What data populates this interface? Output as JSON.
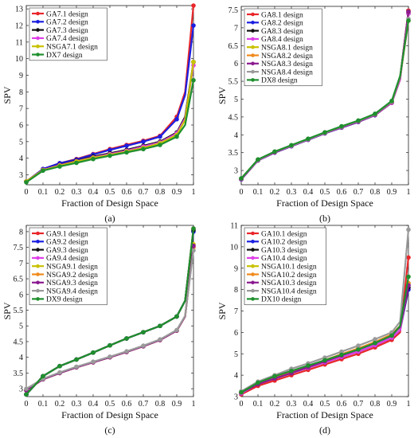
{
  "chart_data": [
    {
      "type": "line",
      "caption": "(a)",
      "xlabel": "Fraction of Design Space",
      "ylabel": "SPV",
      "xlim": [
        0,
        1
      ],
      "ylim": [
        2.4,
        13.2
      ],
      "xticks": [
        "0",
        "0.1",
        "0.2",
        "0.3",
        "0.4",
        "0.5",
        "0.6",
        "0.7",
        "0.8",
        "0.9",
        "1"
      ],
      "yticks": [
        3,
        4,
        5,
        6,
        7,
        8,
        9,
        10,
        11,
        12,
        13
      ],
      "x": [
        0,
        0.1,
        0.2,
        0.3,
        0.4,
        0.5,
        0.6,
        0.7,
        0.8,
        0.9,
        0.95,
        1
      ],
      "legend_position": "top-left",
      "series": [
        {
          "name": "GA7.1 design",
          "color": "#e8262a",
          "values": [
            2.6,
            3.35,
            3.7,
            3.95,
            4.25,
            4.55,
            4.8,
            5.05,
            5.35,
            6.5,
            8.0,
            13.2
          ]
        },
        {
          "name": "GA7.2 design",
          "color": "#1b1fe0",
          "values": [
            2.6,
            3.35,
            3.7,
            3.92,
            4.22,
            4.5,
            4.75,
            5.0,
            5.3,
            6.35,
            7.8,
            12.0
          ]
        },
        {
          "name": "GA7.3 design",
          "color": "#111111",
          "values": [
            2.6,
            3.3,
            3.6,
            3.85,
            4.1,
            4.3,
            4.5,
            4.75,
            5.0,
            5.55,
            6.5,
            9.8
          ]
        },
        {
          "name": "GA7.4 design",
          "color": "#e040e8",
          "values": [
            2.6,
            3.3,
            3.58,
            3.82,
            4.05,
            4.25,
            4.45,
            4.7,
            4.95,
            5.5,
            6.4,
            9.6
          ]
        },
        {
          "name": "NSGA7.1 design",
          "color": "#c9c200",
          "values": [
            2.6,
            3.28,
            3.55,
            3.8,
            4.02,
            4.2,
            4.4,
            4.62,
            4.9,
            5.4,
            6.3,
            9.8
          ]
        },
        {
          "name": "DX7 design",
          "color": "#1f8f2e",
          "values": [
            2.55,
            3.25,
            3.5,
            3.72,
            3.95,
            4.15,
            4.35,
            4.55,
            4.8,
            5.3,
            6.0,
            8.7
          ]
        }
      ]
    },
    {
      "type": "line",
      "caption": "(b)",
      "xlabel": "Fraction of Design Space",
      "ylabel": "SPV",
      "xlim": [
        0,
        1
      ],
      "ylim": [
        2.6,
        7.6
      ],
      "xticks": [
        "0",
        "0.1",
        "0.2",
        "0.3",
        "0.4",
        "0.5",
        "0.6",
        "0.7",
        "0.8",
        "0.9",
        "1"
      ],
      "yticks": [
        "3",
        "3.5",
        "4",
        "4.5",
        "5",
        "5.5",
        "6",
        "6.5",
        "7",
        "7.5"
      ],
      "x": [
        0,
        0.1,
        0.2,
        0.3,
        0.4,
        0.5,
        0.6,
        0.7,
        0.8,
        0.9,
        0.95,
        1
      ],
      "legend_position": "top-left",
      "series": [
        {
          "name": "GA8.1 design",
          "color": "#e8262a",
          "values": [
            2.75,
            3.28,
            3.5,
            3.68,
            3.86,
            4.04,
            4.2,
            4.36,
            4.55,
            4.9,
            5.6,
            7.48
          ]
        },
        {
          "name": "GA8.2 design",
          "color": "#1b1fe0",
          "values": [
            2.75,
            3.28,
            3.5,
            3.68,
            3.86,
            4.04,
            4.2,
            4.36,
            4.55,
            4.9,
            5.6,
            7.45
          ]
        },
        {
          "name": "GA8.3 design",
          "color": "#111111",
          "values": [
            2.76,
            3.29,
            3.51,
            3.69,
            3.87,
            4.05,
            4.21,
            4.37,
            4.56,
            4.9,
            5.55,
            7.4
          ]
        },
        {
          "name": "GA8.4 design",
          "color": "#e040e8",
          "values": [
            2.76,
            3.29,
            3.51,
            3.69,
            3.87,
            4.05,
            4.21,
            4.37,
            4.56,
            4.9,
            5.55,
            7.4
          ]
        },
        {
          "name": "NSGA8.1 design",
          "color": "#c9c200",
          "values": [
            2.77,
            3.3,
            3.52,
            3.7,
            3.88,
            4.06,
            4.22,
            4.38,
            4.57,
            4.92,
            5.6,
            7.45
          ]
        },
        {
          "name": "NSGA8.2 design",
          "color": "#f08a1c",
          "values": [
            2.77,
            3.3,
            3.52,
            3.7,
            3.88,
            4.06,
            4.22,
            4.38,
            4.57,
            4.92,
            5.6,
            7.2
          ]
        },
        {
          "name": "NSGA8.3 design",
          "color": "#8b1a8f",
          "values": [
            2.77,
            3.3,
            3.52,
            3.7,
            3.88,
            4.06,
            4.22,
            4.38,
            4.57,
            4.92,
            5.6,
            7.45
          ]
        },
        {
          "name": "NSGA8.4 design",
          "color": "#9a9a9a",
          "values": [
            2.78,
            3.3,
            3.53,
            3.7,
            3.88,
            4.06,
            4.23,
            4.39,
            4.58,
            4.93,
            5.62,
            7.25
          ]
        },
        {
          "name": "DX8 design",
          "color": "#1f8f2e",
          "values": [
            2.78,
            3.31,
            3.53,
            3.71,
            3.89,
            4.07,
            4.24,
            4.4,
            4.59,
            4.95,
            5.65,
            7.2
          ]
        }
      ]
    },
    {
      "type": "line",
      "caption": "(c)",
      "xlabel": "Fraction of Design Space",
      "ylabel": "SPV",
      "xlim": [
        0,
        1
      ],
      "ylim": [
        2.75,
        8.2
      ],
      "xticks": [
        "0",
        "0.1",
        "0.2",
        "0.3",
        "0.4",
        "0.5",
        "0.6",
        "0.7",
        "0.8",
        "0.9",
        "1"
      ],
      "yticks": [
        "3",
        "3.5",
        "4",
        "4.5",
        "5",
        "5.5",
        "6",
        "6.5",
        "7",
        "7.5",
        "8"
      ],
      "x": [
        0,
        0.1,
        0.2,
        0.3,
        0.4,
        0.5,
        0.6,
        0.7,
        0.8,
        0.9,
        0.95,
        1
      ],
      "legend_position": "top-left",
      "series": [
        {
          "name": "GA9.1 design",
          "color": "#e8262a",
          "values": [
            2.82,
            3.4,
            3.72,
            3.93,
            4.15,
            4.38,
            4.6,
            4.8,
            5.0,
            5.3,
            5.8,
            8.1
          ]
        },
        {
          "name": "GA9.2 design",
          "color": "#1b1fe0",
          "values": [
            2.82,
            3.4,
            3.72,
            3.93,
            4.15,
            4.38,
            4.6,
            4.8,
            5.0,
            5.3,
            5.8,
            8.0
          ]
        },
        {
          "name": "GA9.3 design",
          "color": "#111111",
          "values": [
            2.82,
            3.4,
            3.72,
            3.93,
            4.15,
            4.38,
            4.6,
            4.8,
            5.0,
            5.3,
            5.8,
            8.05
          ]
        },
        {
          "name": "GA9.4 design",
          "color": "#e040e8",
          "values": [
            2.95,
            3.3,
            3.5,
            3.68,
            3.84,
            4.0,
            4.17,
            4.35,
            4.55,
            4.85,
            5.3,
            7.5
          ]
        },
        {
          "name": "NSGA9.1 design",
          "color": "#c9c200",
          "values": [
            2.95,
            3.3,
            3.5,
            3.68,
            3.84,
            4.0,
            4.17,
            4.35,
            4.55,
            4.85,
            5.3,
            7.6
          ]
        },
        {
          "name": "NSGA9.2 design",
          "color": "#f08a1c",
          "values": [
            2.95,
            3.3,
            3.5,
            3.68,
            3.84,
            4.0,
            4.17,
            4.35,
            4.55,
            4.85,
            5.3,
            7.5
          ]
        },
        {
          "name": "NSGA9.3 design",
          "color": "#8b1a8f",
          "values": [
            2.95,
            3.3,
            3.5,
            3.68,
            3.84,
            4.0,
            4.17,
            4.35,
            4.55,
            4.85,
            5.3,
            7.55
          ]
        },
        {
          "name": "NSGA9.4 design",
          "color": "#9a9a9a",
          "values": [
            3.0,
            3.32,
            3.52,
            3.7,
            3.86,
            4.02,
            4.19,
            4.37,
            4.57,
            4.87,
            5.32,
            7.4
          ]
        },
        {
          "name": "DX9 design",
          "color": "#1f8f2e",
          "values": [
            2.82,
            3.4,
            3.72,
            3.93,
            4.15,
            4.38,
            4.6,
            4.8,
            5.0,
            5.3,
            5.8,
            8.1
          ]
        }
      ]
    },
    {
      "type": "line",
      "caption": "(d)",
      "xlabel": "Fraction of Design Space",
      "ylabel": "SPV",
      "xlim": [
        0,
        1
      ],
      "ylim": [
        3.0,
        11.0
      ],
      "xticks": [
        "0",
        "0.1",
        "0.2",
        "0.3",
        "0.4",
        "0.5",
        "0.6",
        "0.7",
        "0.8",
        "0.9",
        "1"
      ],
      "yticks": [
        3,
        4,
        5,
        6,
        7,
        8,
        9,
        10,
        11
      ],
      "x": [
        0,
        0.1,
        0.2,
        0.3,
        0.4,
        0.5,
        0.6,
        0.7,
        0.8,
        0.9,
        0.95,
        1
      ],
      "legend_position": "top-left",
      "series": [
        {
          "name": "GA10.1 design",
          "color": "#e8262a",
          "values": [
            3.1,
            3.5,
            3.75,
            4.0,
            4.25,
            4.5,
            4.75,
            5.0,
            5.3,
            5.65,
            6.0,
            9.5
          ]
        },
        {
          "name": "GA10.2 design",
          "color": "#1b1fe0",
          "values": [
            3.15,
            3.6,
            3.85,
            4.1,
            4.35,
            4.6,
            4.85,
            5.1,
            5.4,
            5.75,
            6.1,
            8.0
          ]
        },
        {
          "name": "GA10.3 design",
          "color": "#111111",
          "values": [
            3.15,
            3.6,
            3.85,
            4.1,
            4.35,
            4.6,
            4.85,
            5.1,
            5.4,
            5.75,
            6.1,
            8.1
          ]
        },
        {
          "name": "GA10.4 design",
          "color": "#e040e8",
          "values": [
            3.15,
            3.6,
            3.85,
            4.1,
            4.35,
            4.6,
            4.85,
            5.1,
            5.4,
            5.75,
            6.1,
            8.2
          ]
        },
        {
          "name": "NSGA10.1 design",
          "color": "#c9c200",
          "values": [
            3.2,
            3.62,
            3.88,
            4.15,
            4.42,
            4.7,
            4.98,
            5.25,
            5.55,
            5.9,
            6.3,
            8.3
          ]
        },
        {
          "name": "NSGA10.2 design",
          "color": "#f08a1c",
          "values": [
            3.2,
            3.62,
            3.88,
            4.15,
            4.42,
            4.7,
            4.98,
            5.25,
            5.55,
            5.9,
            6.3,
            8.3
          ]
        },
        {
          "name": "NSGA10.3 design",
          "color": "#8b1a8f",
          "values": [
            3.2,
            3.58,
            3.85,
            4.1,
            4.38,
            4.65,
            4.92,
            5.2,
            5.5,
            5.85,
            6.25,
            8.2
          ]
        },
        {
          "name": "NSGA10.4 design",
          "color": "#9a9a9a",
          "values": [
            3.25,
            3.7,
            4.0,
            4.3,
            4.55,
            4.82,
            5.1,
            5.38,
            5.68,
            6.0,
            6.5,
            10.8
          ]
        },
        {
          "name": "DX10 design",
          "color": "#1f8f2e",
          "values": [
            3.2,
            3.65,
            3.95,
            4.2,
            4.45,
            4.7,
            4.95,
            5.2,
            5.5,
            5.85,
            6.3,
            8.6
          ]
        }
      ]
    }
  ]
}
